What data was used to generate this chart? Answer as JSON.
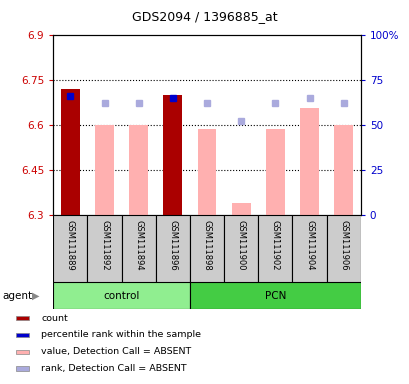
{
  "title": "GDS2094 / 1396885_at",
  "samples": [
    "GSM111889",
    "GSM111892",
    "GSM111894",
    "GSM111896",
    "GSM111898",
    "GSM111900",
    "GSM111902",
    "GSM111904",
    "GSM111906"
  ],
  "ylim_left": [
    6.3,
    6.9
  ],
  "ylim_right": [
    0,
    100
  ],
  "yticks_left": [
    6.3,
    6.45,
    6.6,
    6.75,
    6.9
  ],
  "yticks_right": [
    0,
    25,
    50,
    75,
    100
  ],
  "ytick_labels_right": [
    "0",
    "25",
    "50",
    "75",
    "100%"
  ],
  "hlines": [
    6.75,
    6.6,
    6.45
  ],
  "value_bars": {
    "GSM111889": {
      "value": 6.72,
      "is_present": true
    },
    "GSM111892": {
      "value": 6.6,
      "is_present": false
    },
    "GSM111894": {
      "value": 6.6,
      "is_present": false
    },
    "GSM111896": {
      "value": 6.7,
      "is_present": true
    },
    "GSM111898": {
      "value": 6.585,
      "is_present": false
    },
    "GSM111900": {
      "value": 6.34,
      "is_present": false
    },
    "GSM111902": {
      "value": 6.585,
      "is_present": false
    },
    "GSM111904": {
      "value": 6.655,
      "is_present": false
    },
    "GSM111906": {
      "value": 6.6,
      "is_present": false
    }
  },
  "rank_markers": {
    "GSM111889": {
      "rank": 66,
      "is_present": true
    },
    "GSM111892": {
      "rank": 62,
      "is_present": false
    },
    "GSM111894": {
      "rank": 62,
      "is_present": false
    },
    "GSM111896": {
      "rank": 65,
      "is_present": true
    },
    "GSM111898": {
      "rank": 62,
      "is_present": false
    },
    "GSM111900": {
      "rank": 52,
      "is_present": false
    },
    "GSM111902": {
      "rank": 62,
      "is_present": false
    },
    "GSM111904": {
      "rank": 65,
      "is_present": false
    },
    "GSM111906": {
      "rank": 62,
      "is_present": false
    }
  },
  "colors": {
    "present_bar": "#AA0000",
    "absent_bar": "#FFB0B0",
    "present_rank": "#0000CC",
    "absent_rank": "#AAAADD",
    "control_bg": "#90EE90",
    "pcn_bg": "#44CC44",
    "sample_bg": "#CCCCCC",
    "hline": "black",
    "left_axis": "#CC0000",
    "right_axis": "#0000CC"
  },
  "legend": [
    {
      "color": "#AA0000",
      "label": "count"
    },
    {
      "color": "#0000CC",
      "label": "percentile rank within the sample"
    },
    {
      "color": "#FFB0B0",
      "label": "value, Detection Call = ABSENT"
    },
    {
      "color": "#AAAADD",
      "label": "rank, Detection Call = ABSENT"
    }
  ],
  "agent_label": "agent"
}
